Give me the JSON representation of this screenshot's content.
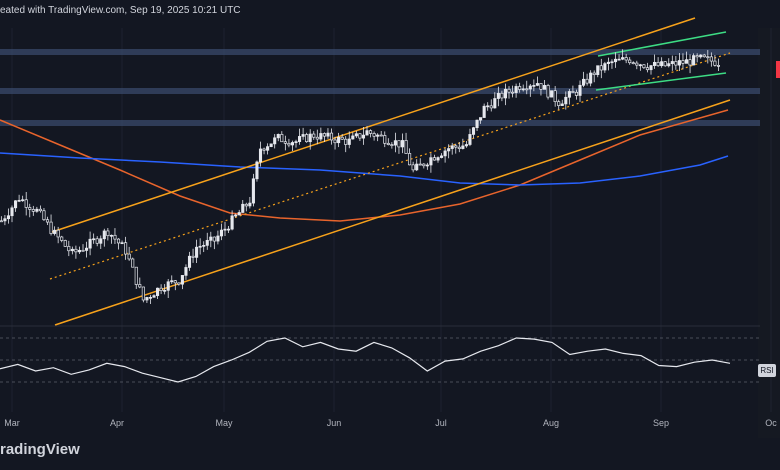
{
  "header": {
    "text": "eated with TradingView.com, Sep 19, 2025 10:21 UTC"
  },
  "brand": {
    "text": "radingView"
  },
  "rsi": {
    "label": "RSI"
  },
  "colors": {
    "background": "#131722",
    "up": "#089981",
    "down": "#f23645",
    "candle": "#e6e8ee",
    "channel": "#f7a21b",
    "ma_fast": "#e8642c",
    "ma_slow": "#2962ff",
    "wedge": "#3ddc84",
    "zone": "#3a4a6b",
    "rsi_line": "#e6e8ee"
  },
  "icons": [
    "tradingview-logo"
  ],
  "chart_data": [
    {
      "type": "candlestick",
      "x_ticks": [
        "Mar",
        "Apr",
        "May",
        "Jun",
        "Jul",
        "Aug",
        "Sep",
        "Oc"
      ],
      "overlays": [
        "ascending channel",
        "dotted midline",
        "horizontal resistance zones",
        "rising wedge",
        "moving averages (orange, blue)"
      ],
      "close_path": [
        [
          "2025-02-26",
          0.54
        ],
        [
          "2025-03-03",
          0.61
        ],
        [
          "2025-03-08",
          0.57
        ],
        [
          "2025-03-13",
          0.5
        ],
        [
          "2025-03-18",
          0.44
        ],
        [
          "2025-03-23",
          0.47
        ],
        [
          "2025-03-28",
          0.51
        ],
        [
          "2025-04-02",
          0.45
        ],
        [
          "2025-04-07",
          0.3
        ],
        [
          "2025-04-12",
          0.34
        ],
        [
          "2025-04-17",
          0.36
        ],
        [
          "2025-04-22",
          0.46
        ],
        [
          "2025-04-27",
          0.48
        ],
        [
          "2025-05-02",
          0.54
        ],
        [
          "2025-05-07",
          0.6
        ],
        [
          "2025-05-10",
          0.76
        ],
        [
          "2025-05-15",
          0.79
        ],
        [
          "2025-05-20",
          0.78
        ],
        [
          "2025-05-25",
          0.8
        ],
        [
          "2025-05-30",
          0.79
        ],
        [
          "2025-06-04",
          0.78
        ],
        [
          "2025-06-09",
          0.81
        ],
        [
          "2025-06-14",
          0.79
        ],
        [
          "2025-06-19",
          0.77
        ],
        [
          "2025-06-22",
          0.69
        ],
        [
          "2025-06-27",
          0.73
        ],
        [
          "2025-07-02",
          0.76
        ],
        [
          "2025-07-07",
          0.77
        ],
        [
          "2025-07-12",
          0.88
        ],
        [
          "2025-07-17",
          0.92
        ],
        [
          "2025-07-22",
          0.95
        ],
        [
          "2025-07-27",
          0.96
        ],
        [
          "2025-08-02",
          0.9
        ],
        [
          "2025-08-07",
          0.93
        ],
        [
          "2025-08-12",
          0.99
        ],
        [
          "2025-08-17",
          1.02
        ],
        [
          "2025-08-22",
          1.03
        ],
        [
          "2025-08-27",
          1.01
        ],
        [
          "2025-09-01",
          1.01
        ],
        [
          "2025-09-06",
          1.02
        ],
        [
          "2025-09-11",
          1.03
        ],
        [
          "2025-09-17",
          1.02
        ]
      ]
    },
    {
      "type": "line",
      "series": [
        {
          "name": "RSI"
        }
      ],
      "guides": [
        70,
        50,
        30
      ],
      "values": [
        42,
        46,
        40,
        43,
        37,
        41,
        47,
        44,
        38,
        34,
        30,
        35,
        44,
        50,
        57,
        67,
        70,
        62,
        66,
        60,
        58,
        66,
        61,
        52,
        40,
        49,
        51,
        58,
        63,
        70,
        69,
        66,
        55,
        58,
        60,
        56,
        54,
        45,
        44,
        48,
        50,
        47
      ]
    }
  ]
}
